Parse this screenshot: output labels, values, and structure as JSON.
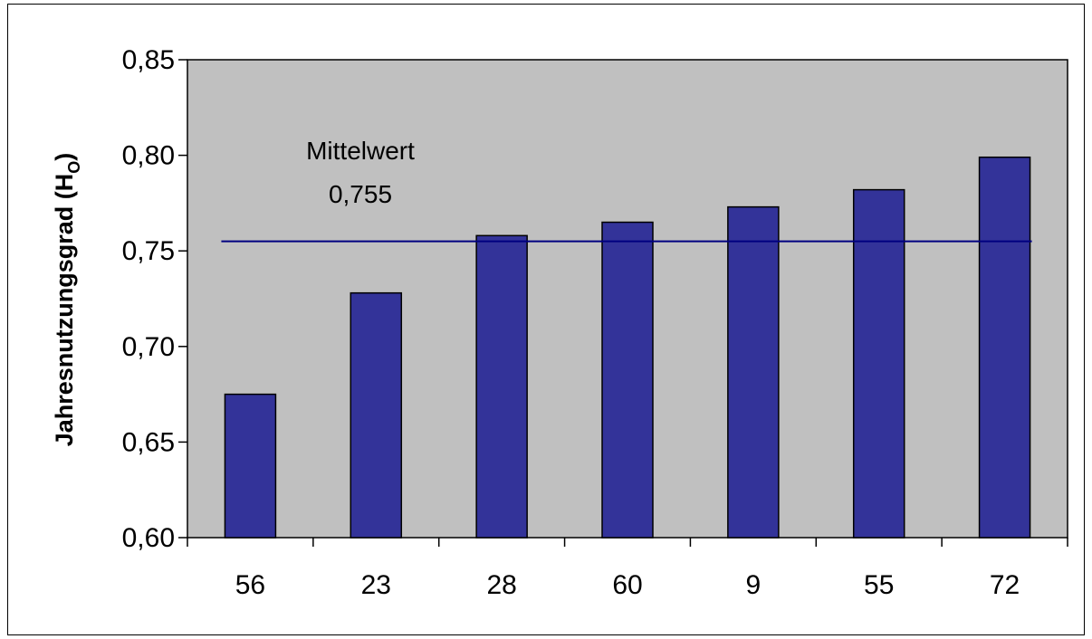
{
  "chart_data": {
    "type": "bar",
    "categories": [
      "56",
      "23",
      "28",
      "60",
      "9",
      "55",
      "72"
    ],
    "values": [
      0.675,
      0.728,
      0.758,
      0.765,
      0.773,
      0.782,
      0.799
    ],
    "ylabel": "Jahresnutzungsgrad (H",
    "ylabel_subscript": "O",
    "ylabel_suffix": ")",
    "ylim": [
      0.6,
      0.85
    ],
    "yticks": [
      "0,60",
      "0,65",
      "0,70",
      "0,75",
      "0,80",
      "0,85"
    ],
    "ytick_values": [
      0.6,
      0.65,
      0.7,
      0.75,
      0.8,
      0.85
    ],
    "mean_line": {
      "value": 0.755,
      "label_line1": "Mittelwert",
      "label_line2": "0,755"
    },
    "grid": false,
    "colors": {
      "bar": "#333399",
      "plot_background": "#c0c0c0",
      "mean_line": "#000080"
    }
  }
}
